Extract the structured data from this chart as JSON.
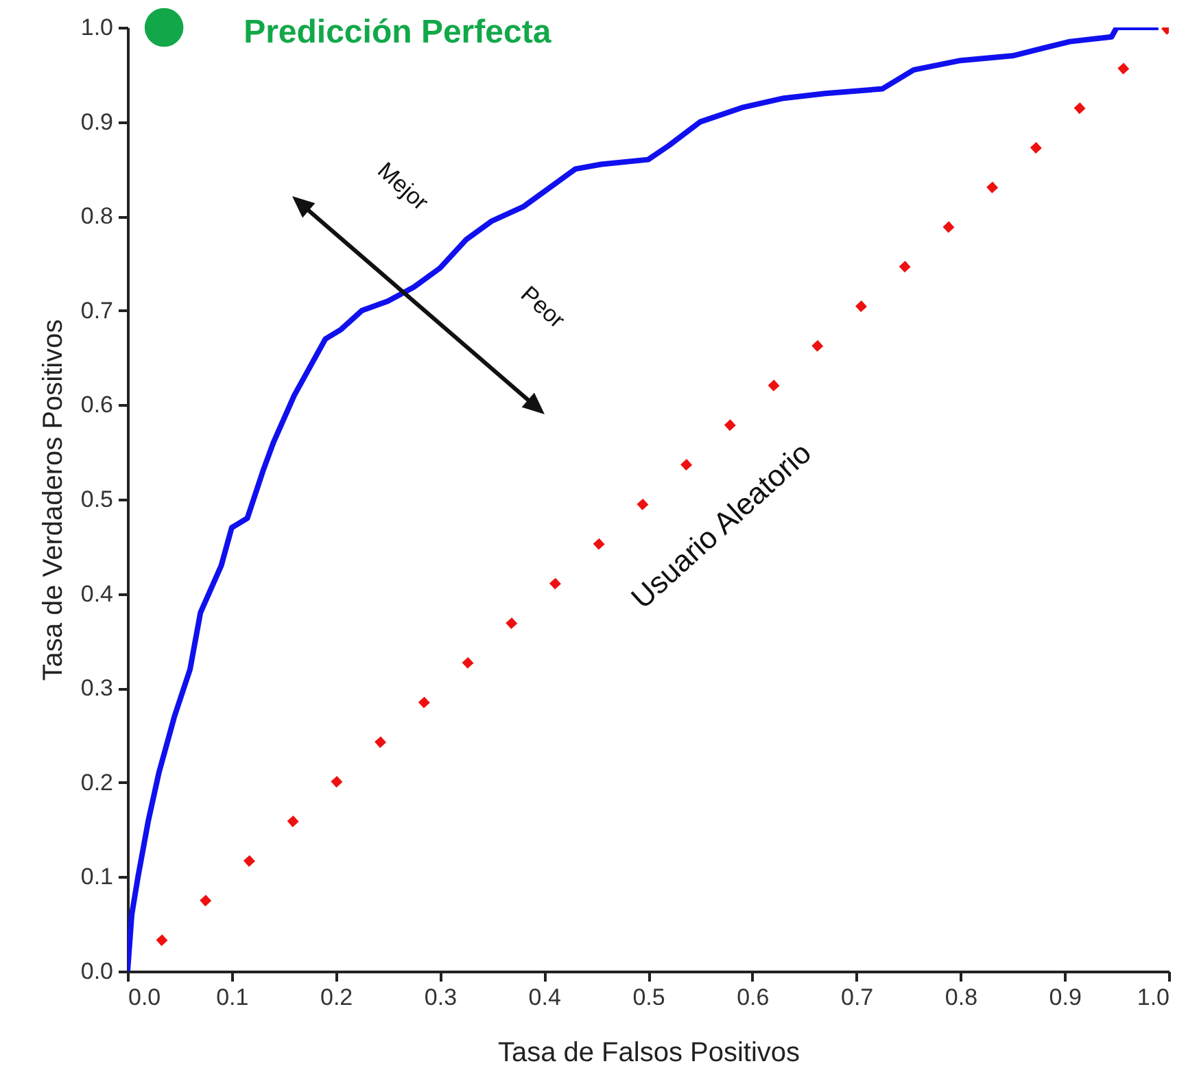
{
  "chart_data": {
    "type": "line",
    "xlabel": "Tasa de Falsos Positivos",
    "ylabel": "Tasa de Verdaderos Positivos",
    "xlim": [
      0,
      1
    ],
    "ylim": [
      0,
      1
    ],
    "xticks": [
      {
        "value": 0,
        "label": "0.0"
      },
      {
        "value": 0.1,
        "label": "0.1"
      },
      {
        "value": 0.2,
        "label": "0.2"
      },
      {
        "value": 0.3,
        "label": "0.3"
      },
      {
        "value": 0.4,
        "label": "0.4"
      },
      {
        "value": 0.5,
        "label": "0.5"
      },
      {
        "value": 0.6,
        "label": "0.6"
      },
      {
        "value": 0.7,
        "label": "0.7"
      },
      {
        "value": 0.8,
        "label": "0.8"
      },
      {
        "value": 0.9,
        "label": "0.9"
      },
      {
        "value": 1,
        "label": "1.0"
      }
    ],
    "yticks": [
      {
        "value": 0,
        "label": "0.0"
      },
      {
        "value": 0.1,
        "label": "0.1"
      },
      {
        "value": 0.2,
        "label": "0.2"
      },
      {
        "value": 0.3,
        "label": "0.3"
      },
      {
        "value": 0.4,
        "label": "0.4"
      },
      {
        "value": 0.5,
        "label": "0.5"
      },
      {
        "value": 0.6,
        "label": "0.6"
      },
      {
        "value": 0.7,
        "label": "0.7"
      },
      {
        "value": 0.8,
        "label": "0.8"
      },
      {
        "value": 0.9,
        "label": "0.9"
      },
      {
        "value": 1,
        "label": "1.0"
      }
    ],
    "grid": false,
    "series": [
      {
        "color": "#1010ee",
        "line_style": "solid",
        "x": [
          0,
          0.004,
          0.01,
          0.02,
          0.03,
          0.045,
          0.06,
          0.07,
          0.09,
          0.1,
          0.115,
          0.13,
          0.14,
          0.16,
          0.175,
          0.19,
          0.205,
          0.225,
          0.25,
          0.275,
          0.3,
          0.325,
          0.35,
          0.38,
          0.405,
          0.43,
          0.455,
          0.5,
          0.52,
          0.55,
          0.59,
          0.63,
          0.67,
          0.725,
          0.755,
          0.8,
          0.85,
          0.905,
          0.945,
          0.95,
          0.99
        ],
        "values": [
          0,
          0.06,
          0.1,
          0.16,
          0.21,
          0.27,
          0.32,
          0.38,
          0.43,
          0.47,
          0.48,
          0.53,
          0.56,
          0.61,
          0.64,
          0.67,
          0.68,
          0.7,
          0.71,
          0.725,
          0.745,
          0.775,
          0.795,
          0.81,
          0.83,
          0.85,
          0.855,
          0.86,
          0.875,
          0.9,
          0.915,
          0.925,
          0.93,
          0.935,
          0.955,
          0.965,
          0.97,
          0.985,
          0.99,
          1,
          1
        ]
      },
      {
        "name": "Usuario Aleatorio",
        "color": "#ee1111",
        "line_style": "dotted",
        "x": [
          0.03,
          1
        ],
        "values": [
          0.03,
          1
        ]
      },
      {
        "type": "scatter",
        "name": "Predicción Perfecta",
        "color": "#12a84a",
        "marker": "circle",
        "x": [
          0.035
        ],
        "values": [
          1
        ]
      }
    ],
    "annotations": [
      "Mejor",
      "Peor"
    ]
  }
}
